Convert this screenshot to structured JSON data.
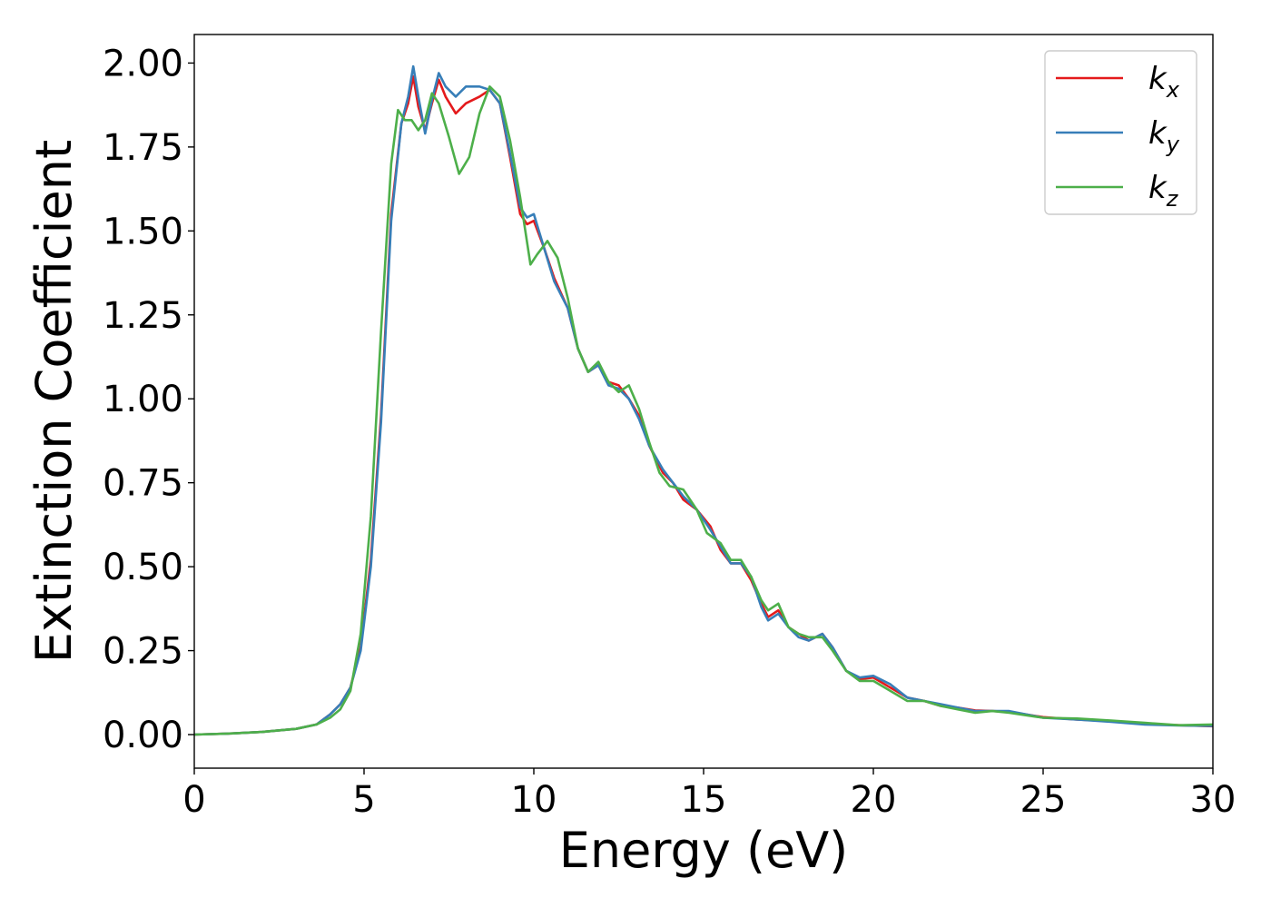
{
  "chart_data": {
    "type": "line",
    "title": "",
    "xlabel": "Energy (eV)",
    "ylabel": "Extinction Coefficient",
    "xlim": [
      0,
      30
    ],
    "ylim": [
      -0.1,
      2.085
    ],
    "xticks": [
      0,
      5,
      10,
      15,
      20,
      25,
      30
    ],
    "xtick_labels": [
      "0",
      "5",
      "10",
      "15",
      "20",
      "25",
      "30"
    ],
    "yticks": [
      0.0,
      0.25,
      0.5,
      0.75,
      1.0,
      1.25,
      1.5,
      1.75,
      2.0
    ],
    "ytick_labels": [
      "0.00",
      "0.25",
      "0.50",
      "0.75",
      "1.00",
      "1.25",
      "1.50",
      "1.75",
      "2.00"
    ],
    "grid": false,
    "legend_position": "top-right",
    "series": [
      {
        "name": "k_x",
        "base": "k",
        "sub": "x",
        "color": "#e41a1c",
        "points": [
          [
            0,
            0.0
          ],
          [
            1,
            0.003
          ],
          [
            2,
            0.008
          ],
          [
            3,
            0.017
          ],
          [
            3.6,
            0.03
          ],
          [
            4,
            0.06
          ],
          [
            4.3,
            0.09
          ],
          [
            4.6,
            0.14
          ],
          [
            4.9,
            0.26
          ],
          [
            5.2,
            0.52
          ],
          [
            5.5,
            0.95
          ],
          [
            5.8,
            1.55
          ],
          [
            6.1,
            1.82
          ],
          [
            6.3,
            1.88
          ],
          [
            6.45,
            1.96
          ],
          [
            6.6,
            1.87
          ],
          [
            6.8,
            1.8
          ],
          [
            7.0,
            1.88
          ],
          [
            7.2,
            1.95
          ],
          [
            7.4,
            1.9
          ],
          [
            7.7,
            1.85
          ],
          [
            8.0,
            1.88
          ],
          [
            8.4,
            1.9
          ],
          [
            8.7,
            1.92
          ],
          [
            9.0,
            1.88
          ],
          [
            9.3,
            1.72
          ],
          [
            9.6,
            1.55
          ],
          [
            9.8,
            1.52
          ],
          [
            10.0,
            1.53
          ],
          [
            10.3,
            1.45
          ],
          [
            10.6,
            1.36
          ],
          [
            11.0,
            1.27
          ],
          [
            11.3,
            1.15
          ],
          [
            11.6,
            1.08
          ],
          [
            11.9,
            1.1
          ],
          [
            12.2,
            1.05
          ],
          [
            12.5,
            1.04
          ],
          [
            12.8,
            1.0
          ],
          [
            13.1,
            0.95
          ],
          [
            13.4,
            0.86
          ],
          [
            13.8,
            0.78
          ],
          [
            14.1,
            0.75
          ],
          [
            14.4,
            0.7
          ],
          [
            14.8,
            0.67
          ],
          [
            15.2,
            0.62
          ],
          [
            15.5,
            0.55
          ],
          [
            15.8,
            0.51
          ],
          [
            16.1,
            0.51
          ],
          [
            16.4,
            0.46
          ],
          [
            16.7,
            0.39
          ],
          [
            16.9,
            0.35
          ],
          [
            17.2,
            0.37
          ],
          [
            17.5,
            0.32
          ],
          [
            17.8,
            0.3
          ],
          [
            18.1,
            0.28
          ],
          [
            18.5,
            0.3
          ],
          [
            18.8,
            0.26
          ],
          [
            19.2,
            0.19
          ],
          [
            19.6,
            0.165
          ],
          [
            20.0,
            0.17
          ],
          [
            20.5,
            0.14
          ],
          [
            21.0,
            0.11
          ],
          [
            21.5,
            0.1
          ],
          [
            22.0,
            0.085
          ],
          [
            22.5,
            0.08
          ],
          [
            23.0,
            0.072
          ],
          [
            23.5,
            0.07
          ],
          [
            24.0,
            0.068
          ],
          [
            25.0,
            0.052
          ],
          [
            26.0,
            0.045
          ],
          [
            27.0,
            0.04
          ],
          [
            28.0,
            0.032
          ],
          [
            29.0,
            0.028
          ],
          [
            30,
            0.025
          ]
        ]
      },
      {
        "name": "k_y",
        "base": "k",
        "sub": "y",
        "color": "#377eb8",
        "points": [
          [
            0,
            0.0
          ],
          [
            1,
            0.003
          ],
          [
            2,
            0.008
          ],
          [
            3,
            0.017
          ],
          [
            3.6,
            0.03
          ],
          [
            4,
            0.06
          ],
          [
            4.3,
            0.09
          ],
          [
            4.6,
            0.14
          ],
          [
            4.9,
            0.25
          ],
          [
            5.2,
            0.5
          ],
          [
            5.5,
            0.93
          ],
          [
            5.8,
            1.53
          ],
          [
            6.1,
            1.82
          ],
          [
            6.3,
            1.9
          ],
          [
            6.45,
            1.99
          ],
          [
            6.6,
            1.9
          ],
          [
            6.8,
            1.79
          ],
          [
            7.0,
            1.89
          ],
          [
            7.2,
            1.97
          ],
          [
            7.4,
            1.93
          ],
          [
            7.7,
            1.9
          ],
          [
            8.0,
            1.93
          ],
          [
            8.4,
            1.93
          ],
          [
            8.7,
            1.92
          ],
          [
            9.0,
            1.88
          ],
          [
            9.3,
            1.73
          ],
          [
            9.6,
            1.57
          ],
          [
            9.8,
            1.54
          ],
          [
            10.0,
            1.55
          ],
          [
            10.3,
            1.45
          ],
          [
            10.6,
            1.35
          ],
          [
            11.0,
            1.27
          ],
          [
            11.3,
            1.15
          ],
          [
            11.6,
            1.08
          ],
          [
            11.9,
            1.1
          ],
          [
            12.2,
            1.04
          ],
          [
            12.5,
            1.03
          ],
          [
            12.8,
            1.0
          ],
          [
            13.1,
            0.94
          ],
          [
            13.4,
            0.86
          ],
          [
            13.8,
            0.79
          ],
          [
            14.1,
            0.75
          ],
          [
            14.4,
            0.71
          ],
          [
            14.8,
            0.67
          ],
          [
            15.2,
            0.61
          ],
          [
            15.5,
            0.56
          ],
          [
            15.8,
            0.51
          ],
          [
            16.1,
            0.51
          ],
          [
            16.4,
            0.47
          ],
          [
            16.7,
            0.38
          ],
          [
            16.9,
            0.34
          ],
          [
            17.2,
            0.36
          ],
          [
            17.5,
            0.32
          ],
          [
            17.8,
            0.29
          ],
          [
            18.1,
            0.28
          ],
          [
            18.5,
            0.3
          ],
          [
            18.8,
            0.26
          ],
          [
            19.2,
            0.19
          ],
          [
            19.6,
            0.17
          ],
          [
            20.0,
            0.175
          ],
          [
            20.5,
            0.15
          ],
          [
            21.0,
            0.11
          ],
          [
            21.5,
            0.1
          ],
          [
            22.0,
            0.09
          ],
          [
            22.5,
            0.08
          ],
          [
            23.0,
            0.07
          ],
          [
            23.5,
            0.07
          ],
          [
            24.0,
            0.07
          ],
          [
            25.0,
            0.05
          ],
          [
            26.0,
            0.045
          ],
          [
            27.0,
            0.038
          ],
          [
            28.0,
            0.03
          ],
          [
            29.0,
            0.027
          ],
          [
            30,
            0.026
          ]
        ]
      },
      {
        "name": "k_z",
        "base": "k",
        "sub": "z",
        "color": "#4daf4a",
        "points": [
          [
            0,
            0.0
          ],
          [
            1,
            0.003
          ],
          [
            2,
            0.008
          ],
          [
            3,
            0.017
          ],
          [
            3.6,
            0.03
          ],
          [
            4,
            0.05
          ],
          [
            4.3,
            0.075
          ],
          [
            4.6,
            0.13
          ],
          [
            4.9,
            0.3
          ],
          [
            5.2,
            0.65
          ],
          [
            5.5,
            1.2
          ],
          [
            5.8,
            1.7
          ],
          [
            6.0,
            1.86
          ],
          [
            6.2,
            1.83
          ],
          [
            6.4,
            1.83
          ],
          [
            6.6,
            1.8
          ],
          [
            6.8,
            1.83
          ],
          [
            7.0,
            1.91
          ],
          [
            7.2,
            1.88
          ],
          [
            7.5,
            1.78
          ],
          [
            7.8,
            1.67
          ],
          [
            8.1,
            1.72
          ],
          [
            8.4,
            1.85
          ],
          [
            8.7,
            1.93
          ],
          [
            9.0,
            1.9
          ],
          [
            9.3,
            1.77
          ],
          [
            9.6,
            1.6
          ],
          [
            9.9,
            1.4
          ],
          [
            10.1,
            1.43
          ],
          [
            10.4,
            1.47
          ],
          [
            10.7,
            1.42
          ],
          [
            11.0,
            1.3
          ],
          [
            11.3,
            1.15
          ],
          [
            11.6,
            1.08
          ],
          [
            11.9,
            1.11
          ],
          [
            12.2,
            1.05
          ],
          [
            12.5,
            1.02
          ],
          [
            12.8,
            1.04
          ],
          [
            13.1,
            0.97
          ],
          [
            13.4,
            0.87
          ],
          [
            13.7,
            0.78
          ],
          [
            14.0,
            0.74
          ],
          [
            14.4,
            0.73
          ],
          [
            14.8,
            0.67
          ],
          [
            15.1,
            0.6
          ],
          [
            15.5,
            0.57
          ],
          [
            15.8,
            0.52
          ],
          [
            16.1,
            0.52
          ],
          [
            16.4,
            0.47
          ],
          [
            16.7,
            0.4
          ],
          [
            16.9,
            0.37
          ],
          [
            17.2,
            0.39
          ],
          [
            17.5,
            0.32
          ],
          [
            17.8,
            0.3
          ],
          [
            18.1,
            0.29
          ],
          [
            18.5,
            0.29
          ],
          [
            18.8,
            0.25
          ],
          [
            19.2,
            0.19
          ],
          [
            19.6,
            0.16
          ],
          [
            20.0,
            0.16
          ],
          [
            20.5,
            0.13
          ],
          [
            21.0,
            0.1
          ],
          [
            21.5,
            0.1
          ],
          [
            22.0,
            0.085
          ],
          [
            22.5,
            0.075
          ],
          [
            23.0,
            0.065
          ],
          [
            23.5,
            0.07
          ],
          [
            24.0,
            0.065
          ],
          [
            25.0,
            0.05
          ],
          [
            26.0,
            0.048
          ],
          [
            27.0,
            0.042
          ],
          [
            28.0,
            0.035
          ],
          [
            29.0,
            0.028
          ],
          [
            30,
            0.03
          ]
        ]
      }
    ]
  }
}
